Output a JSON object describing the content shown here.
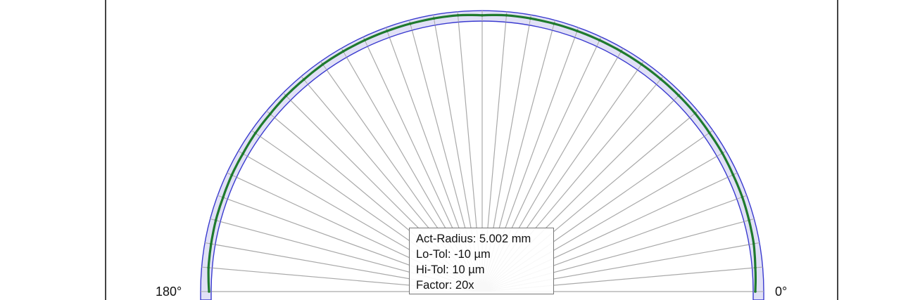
{
  "chart_data": {
    "type": "polar-deviation",
    "angle_labels": {
      "start": "0°",
      "end": "180°"
    },
    "info": {
      "act_radius": "Act-Radius: 5.002 mm",
      "lo_tol": "Lo-Tol: -10 µm",
      "hi_tol": "Hi-Tol: 10 µm",
      "factor": "Factor: 20x"
    },
    "tolerance_um": [
      -10,
      10
    ],
    "magnification": 20,
    "angles_deg": [
      0,
      5,
      10,
      15,
      20,
      25,
      30,
      35,
      40,
      45,
      50,
      55,
      60,
      65,
      70,
      75,
      80,
      85,
      90,
      95,
      100,
      105,
      110,
      115,
      120,
      125,
      130,
      135,
      140,
      145,
      150,
      155,
      160,
      165,
      170,
      175,
      180
    ],
    "deviation_um": [
      -6,
      -4,
      -1,
      0,
      1,
      1,
      2,
      2,
      3,
      3,
      3,
      3,
      3,
      3,
      3,
      3,
      3,
      3,
      1,
      3,
      3,
      3,
      3,
      3,
      3,
      3,
      2,
      2,
      1,
      1,
      0,
      0,
      -1,
      -1,
      -2,
      -3,
      -6
    ],
    "colors": {
      "tolerance_band": "#dcdcf5",
      "tolerance_edge": "#3a3acf",
      "profile": "#1f7a2e",
      "rays": "#a9a9a9"
    }
  }
}
